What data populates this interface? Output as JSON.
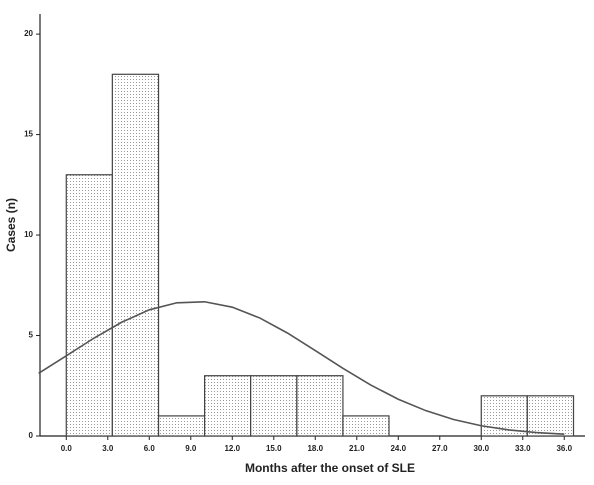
{
  "chart_data": {
    "type": "histogram",
    "x_label": "Months after the onset of SLE",
    "y_label": "Cases (n)",
    "bins": [
      0,
      3.33,
      6.67,
      10,
      13.33,
      16.67,
      20,
      23.33,
      26.67,
      30,
      33.33,
      36.67
    ],
    "values": [
      13,
      18,
      1,
      3,
      3,
      3,
      1,
      0,
      0,
      2,
      2
    ],
    "color": "#444444",
    "curve": {
      "color": "#555555",
      "x": [
        -2,
        0,
        2,
        4,
        6,
        8,
        10,
        12,
        14,
        16,
        18,
        20,
        22,
        24,
        26,
        28,
        30,
        32,
        34,
        36
      ],
      "values": [
        3.12,
        3.99,
        4.87,
        5.66,
        6.28,
        6.63,
        6.68,
        6.41,
        5.87,
        5.12,
        4.25,
        3.37,
        2.54,
        1.83,
        1.26,
        0.82,
        0.51,
        0.3,
        0.17,
        0.09
      ]
    },
    "xlim": [
      -1.9,
      37.5
    ],
    "ylim": [
      0,
      21
    ],
    "xticks": [
      {
        "value": 0,
        "label": "0.0"
      },
      {
        "value": 3,
        "label": "3.0"
      },
      {
        "value": 6,
        "label": "6.0"
      },
      {
        "value": 9,
        "label": "9.0"
      },
      {
        "value": 12,
        "label": "12.0"
      },
      {
        "value": 15,
        "label": "15.0"
      },
      {
        "value": 18,
        "label": "18.0"
      },
      {
        "value": 21,
        "label": "21.0"
      },
      {
        "value": 24,
        "label": "24.0"
      },
      {
        "value": 27,
        "label": "27.0"
      },
      {
        "value": 30,
        "label": "30.0"
      },
      {
        "value": 33,
        "label": "33.0"
      },
      {
        "value": 36,
        "label": "36.0"
      }
    ],
    "yticks": [
      0,
      5,
      10,
      15,
      20
    ]
  }
}
